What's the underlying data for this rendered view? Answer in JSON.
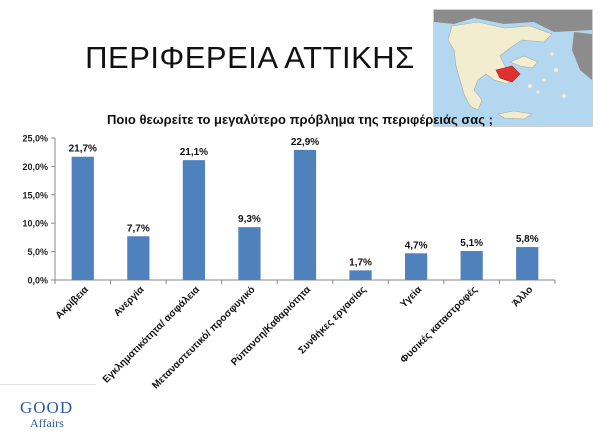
{
  "slide": {
    "title": "ΠΕΡΙΦΕΡΕΙΑ ΑΤΤΙΚΗΣ"
  },
  "logo": {
    "line1": "GOOD",
    "line2": "Affairs"
  },
  "colors": {
    "bar": "#4f81bd",
    "highlight_region": "#e0312f",
    "sea": "#b3d7ee",
    "land": "#f3edd0",
    "neighbor_land": "#8c8c8c"
  },
  "chart_data": {
    "type": "bar",
    "title": "Ποιο θεωρείτε το μεγαλύτερο πρόβλημα της περιφέρειάς σας ;",
    "categories": [
      "Ακρίβεια",
      "Ανεργία",
      "Εγκληματικότητα/ ασφάλεια",
      "Μεταναστευτικό/ προσφυγικό",
      "Ρύπανση/Καθαριότητα",
      "Συνθήκες εργασίας",
      "Υγεία",
      "Φυσικές καταστροφές",
      "Άλλο"
    ],
    "values": [
      21.7,
      7.7,
      21.1,
      9.3,
      22.9,
      1.7,
      4.7,
      5.1,
      5.8
    ],
    "value_labels": [
      "21,7%",
      "7,7%",
      "21,1%",
      "9,3%",
      "22,9%",
      "1,7%",
      "4,7%",
      "5,1%",
      "5,8%"
    ],
    "y_ticks": [
      0,
      5,
      10,
      15,
      20,
      25
    ],
    "y_tick_labels": [
      "0,0%",
      "5,0%",
      "10,0%",
      "15,0%",
      "20,0%",
      "25,0%"
    ],
    "ylim": [
      0,
      25
    ],
    "grid": false,
    "legend": "none"
  }
}
